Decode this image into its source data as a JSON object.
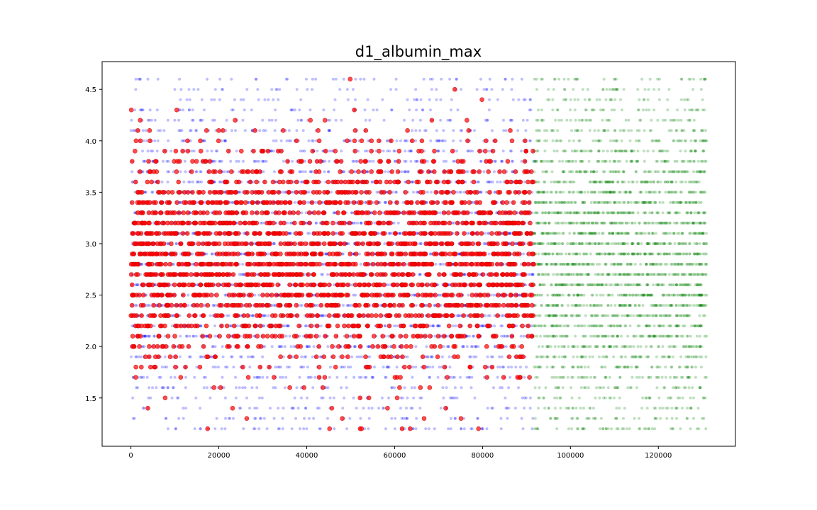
{
  "chart_data": {
    "type": "scatter",
    "title": "d1_albumin_max",
    "xlabel": "",
    "ylabel": "",
    "xlim": [
      -6550,
      137550
    ],
    "ylim": [
      1.03,
      4.77
    ],
    "x_ticks": [
      0,
      20000,
      40000,
      60000,
      80000,
      100000,
      120000
    ],
    "x_tick_labels": [
      "0",
      "20000",
      "40000",
      "60000",
      "80000",
      "100000",
      "120000"
    ],
    "y_ticks": [
      1.5,
      2.0,
      2.5,
      3.0,
      3.5,
      4.0,
      4.5
    ],
    "y_tick_labels": [
      "1.5",
      "2.0",
      "2.5",
      "3.0",
      "3.5",
      "4.0",
      "4.5"
    ],
    "y_levels": [
      1.2,
      1.3,
      1.4,
      1.5,
      1.6,
      1.7,
      1.8,
      1.9,
      2.0,
      2.1,
      2.2,
      2.3,
      2.4,
      2.5,
      2.6,
      2.7,
      2.8,
      2.9,
      3.0,
      3.1,
      3.2,
      3.3,
      3.4,
      3.5,
      3.6,
      3.7,
      3.8,
      3.9,
      4.0,
      4.1,
      4.2,
      4.3,
      4.4,
      4.5,
      4.6
    ],
    "grid": false,
    "series": [
      {
        "color": "#0000ff",
        "x_range": [
          0,
          91700
        ],
        "marker_size": 2,
        "opacity": 0.25
      },
      {
        "color": "#008000",
        "x_range": [
          91700,
          131000
        ],
        "marker_size": 2,
        "opacity": 0.25
      },
      {
        "color": "#ff0000",
        "x_range": [
          0,
          91700
        ],
        "marker_size": 3,
        "opacity": 0.7
      }
    ],
    "level_density": {
      "1.2": 0.15,
      "1.3": 0.1,
      "1.4": 0.12,
      "1.5": 0.1,
      "1.6": 0.16,
      "1.7": 0.25,
      "1.8": 0.32,
      "1.9": 0.4,
      "2.0": 0.5,
      "2.1": 0.58,
      "2.2": 0.65,
      "2.3": 0.75,
      "2.4": 0.8,
      "2.5": 0.85,
      "2.6": 0.9,
      "2.7": 0.92,
      "2.8": 0.93,
      "2.9": 0.92,
      "3.0": 0.9,
      "3.1": 0.88,
      "3.2": 0.85,
      "3.3": 0.82,
      "3.4": 0.78,
      "3.5": 0.7,
      "3.6": 0.62,
      "3.7": 0.55,
      "3.8": 0.45,
      "3.9": 0.38,
      "4.0": 0.3,
      "4.1": 0.22,
      "4.2": 0.14,
      "4.3": 0.09,
      "4.4": 0.05,
      "4.5": 0.03,
      "4.6": 0.05
    }
  }
}
